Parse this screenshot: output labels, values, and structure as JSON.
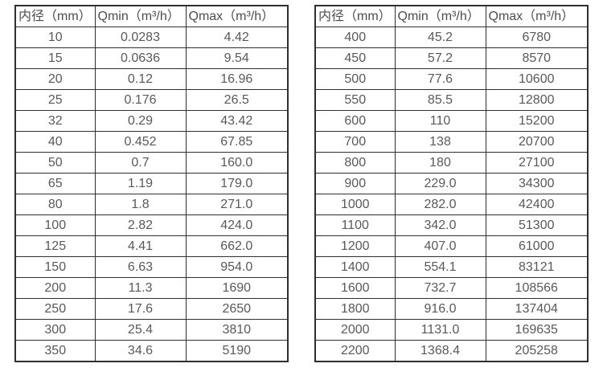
{
  "page": {
    "background_color": "#ffffff",
    "text_color": "#595959",
    "border_color": "#2f2f2f"
  },
  "tables": [
    {
      "headers": [
        "内径（mm）",
        "Qmin（m³/h）",
        "Qmax（m³/h）"
      ],
      "rows": [
        [
          "10",
          "0.0283",
          "4.42"
        ],
        [
          "15",
          "0.0636",
          "9.54"
        ],
        [
          "20",
          "0.12",
          "16.96"
        ],
        [
          "25",
          "0.176",
          "26.5"
        ],
        [
          "32",
          "0.29",
          "43.42"
        ],
        [
          "40",
          "0.452",
          "67.85"
        ],
        [
          "50",
          "0.7",
          "160.0"
        ],
        [
          "65",
          "1.19",
          "179.0"
        ],
        [
          "80",
          "1.8",
          "271.0"
        ],
        [
          "100",
          "2.82",
          "424.0"
        ],
        [
          "125",
          "4.41",
          "662.0"
        ],
        [
          "150",
          "6.63",
          "954.0"
        ],
        [
          "200",
          "11.3",
          "1690"
        ],
        [
          "250",
          "17.6",
          "2650"
        ],
        [
          "300",
          "25.4",
          "3810"
        ],
        [
          "350",
          "34.6",
          "5190"
        ]
      ]
    },
    {
      "headers": [
        "内径（mm）",
        "Qmin（m³/h）",
        "Qmax（m³/h）"
      ],
      "rows": [
        [
          "400",
          "45.2",
          "6780"
        ],
        [
          "450",
          "57.2",
          "8570"
        ],
        [
          "500",
          "77.6",
          "10600"
        ],
        [
          "550",
          "85.5",
          "12800"
        ],
        [
          "600",
          "110",
          "15200"
        ],
        [
          "700",
          "138",
          "20700"
        ],
        [
          "800",
          "180",
          "27100"
        ],
        [
          "900",
          "229.0",
          "34300"
        ],
        [
          "1000",
          "282.0",
          "42400"
        ],
        [
          "1100",
          "342.0",
          "51300"
        ],
        [
          "1200",
          "407.0",
          "61000"
        ],
        [
          "1400",
          "554.1",
          "83121"
        ],
        [
          "1600",
          "732.7",
          "108566"
        ],
        [
          "1800",
          "916.0",
          "137404"
        ],
        [
          "2000",
          "1131.0",
          "169635"
        ],
        [
          "2200",
          "1368.4",
          "205258"
        ]
      ]
    }
  ]
}
